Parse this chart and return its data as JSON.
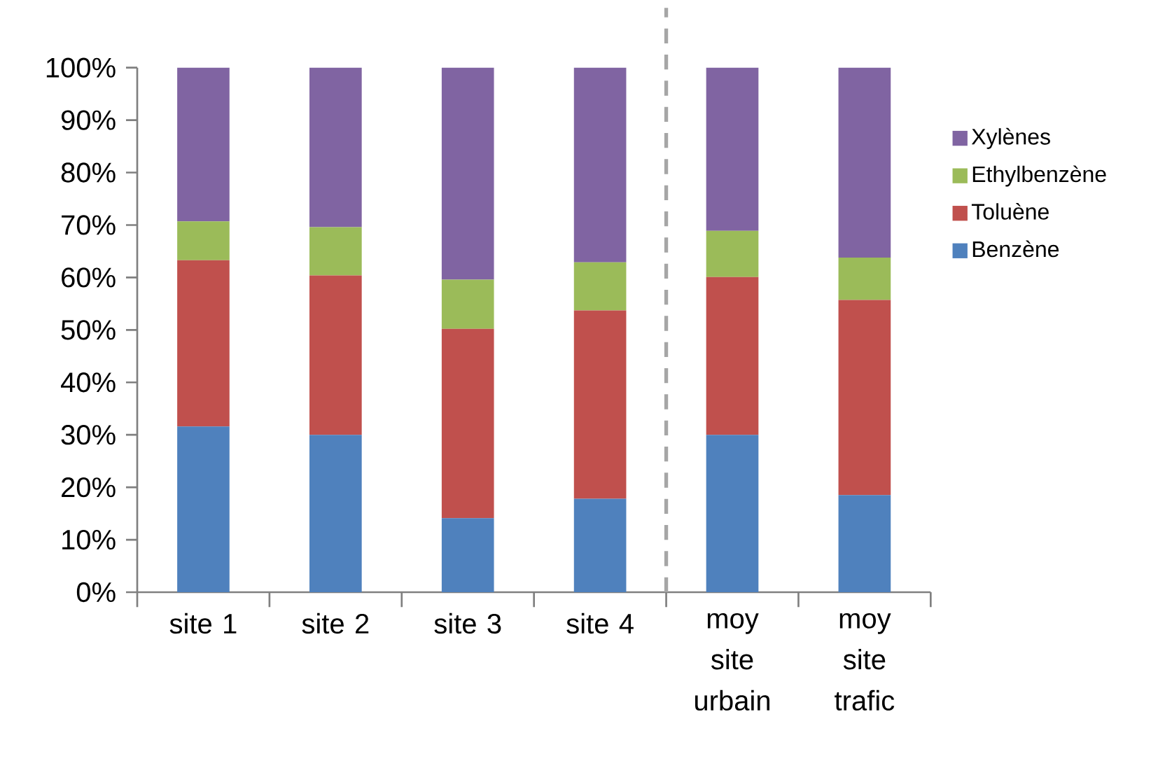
{
  "chart_data": {
    "type": "bar",
    "stacked": true,
    "categories": [
      "site 1",
      "site 2",
      "site 3",
      "site 4",
      "moy site urbain",
      "moy site trafic"
    ],
    "series": [
      {
        "name": "Benzène",
        "color": "#4f81bd",
        "values": [
          31.6,
          30.0,
          14.1,
          17.8,
          30.0,
          18.5
        ]
      },
      {
        "name": "Toluène",
        "color": "#c0504d",
        "values": [
          31.7,
          30.4,
          36.1,
          35.9,
          30.1,
          37.2
        ]
      },
      {
        "name": "Ethylbenzène",
        "color": "#9bbb59",
        "values": [
          7.4,
          9.2,
          9.4,
          9.2,
          8.8,
          8.1
        ]
      },
      {
        "name": "Xylènes",
        "color": "#8064a2",
        "values": [
          29.3,
          30.4,
          40.4,
          37.1,
          31.1,
          36.2
        ]
      }
    ],
    "ylim": [
      0,
      100
    ],
    "yticks": [
      {
        "value": 0,
        "label": "0%"
      },
      {
        "value": 10,
        "label": "10%"
      },
      {
        "value": 20,
        "label": "20%"
      },
      {
        "value": 30,
        "label": "30%"
      },
      {
        "value": 40,
        "label": "40%"
      },
      {
        "value": 50,
        "label": "50%"
      },
      {
        "value": 60,
        "label": "60%"
      },
      {
        "value": 70,
        "label": "70%"
      },
      {
        "value": 80,
        "label": "80%"
      },
      {
        "value": 90,
        "label": "90%"
      },
      {
        "value": 100,
        "label": "100%"
      }
    ],
    "legend": "right",
    "grid": false
  }
}
